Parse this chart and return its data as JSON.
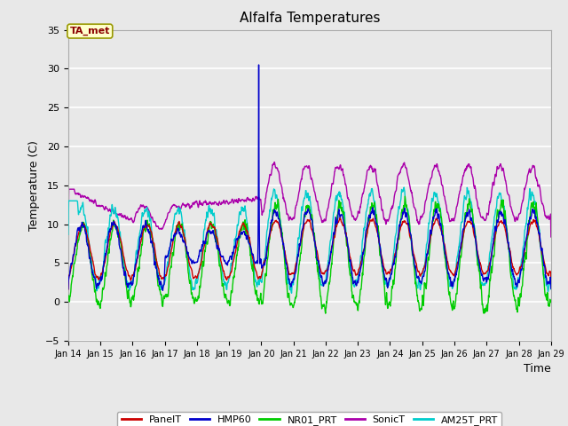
{
  "title": "Alfalfa Temperatures",
  "ylabel": "Temperature (C)",
  "xlabel": "Time",
  "annotation": "TA_met",
  "xlim_days": [
    14,
    29
  ],
  "ylim": [
    -5,
    35
  ],
  "yticks": [
    -5,
    0,
    5,
    10,
    15,
    20,
    25,
    30,
    35
  ],
  "xtick_labels": [
    "Jan 14",
    "Jan 15",
    "Jan 16",
    "Jan 17",
    "Jan 18",
    "Jan 19",
    "Jan 20",
    "Jan 21",
    "Jan 22",
    "Jan 23",
    "Jan 24",
    "Jan 25",
    "Jan 26",
    "Jan 27",
    "Jan 28",
    "Jan 29"
  ],
  "series": {
    "PanelT": {
      "color": "#cc0000",
      "lw": 1.0
    },
    "HMP60": {
      "color": "#0000cc",
      "lw": 1.0
    },
    "NR01_PRT": {
      "color": "#00cc00",
      "lw": 1.0
    },
    "SonicT": {
      "color": "#aa00aa",
      "lw": 1.0
    },
    "AM25T_PRT": {
      "color": "#00cccc",
      "lw": 1.0
    }
  },
  "bg_color": "#e8e8e8",
  "grid_color": "#ffffff",
  "fig_bg": "#e8e8e8",
  "annotation_bg": "#ffffcc",
  "annotation_text_color": "#8b0000",
  "annotation_border_color": "#999900"
}
